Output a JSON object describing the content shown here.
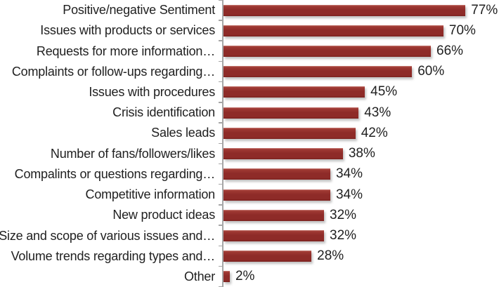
{
  "chart_data": {
    "type": "bar",
    "orientation": "horizontal",
    "title": "",
    "xlabel": "",
    "ylabel": "",
    "categories": [
      "Positive/negative Sentiment",
      "Issues with products or services",
      "Requests for more information…",
      "Complaints or follow-ups regarding…",
      "Issues with procedures",
      "Crisis identification",
      "Sales leads",
      "Number of fans/followers/likes",
      "Compalints or questions regarding…",
      "Competitive information",
      "New product ideas",
      "Size and scope of various issues and…",
      "Volume trends regarding types and…",
      "Other"
    ],
    "values": [
      77,
      70,
      66,
      60,
      45,
      43,
      42,
      38,
      34,
      34,
      32,
      32,
      28,
      2
    ],
    "value_labels": [
      "77%",
      "70%",
      "66%",
      "60%",
      "45%",
      "43%",
      "42%",
      "38%",
      "34%",
      "34%",
      "32%",
      "32%",
      "28%",
      "2%"
    ],
    "value_suffix": "%",
    "xlim": [
      0,
      80
    ],
    "grid": false,
    "legend": false,
    "axis": {
      "line_color": "#a6a6a6",
      "ticks": true,
      "value_axis_labels_visible": false
    },
    "bar_color": "#8e2b28",
    "text_color": "#1f1f1f"
  }
}
